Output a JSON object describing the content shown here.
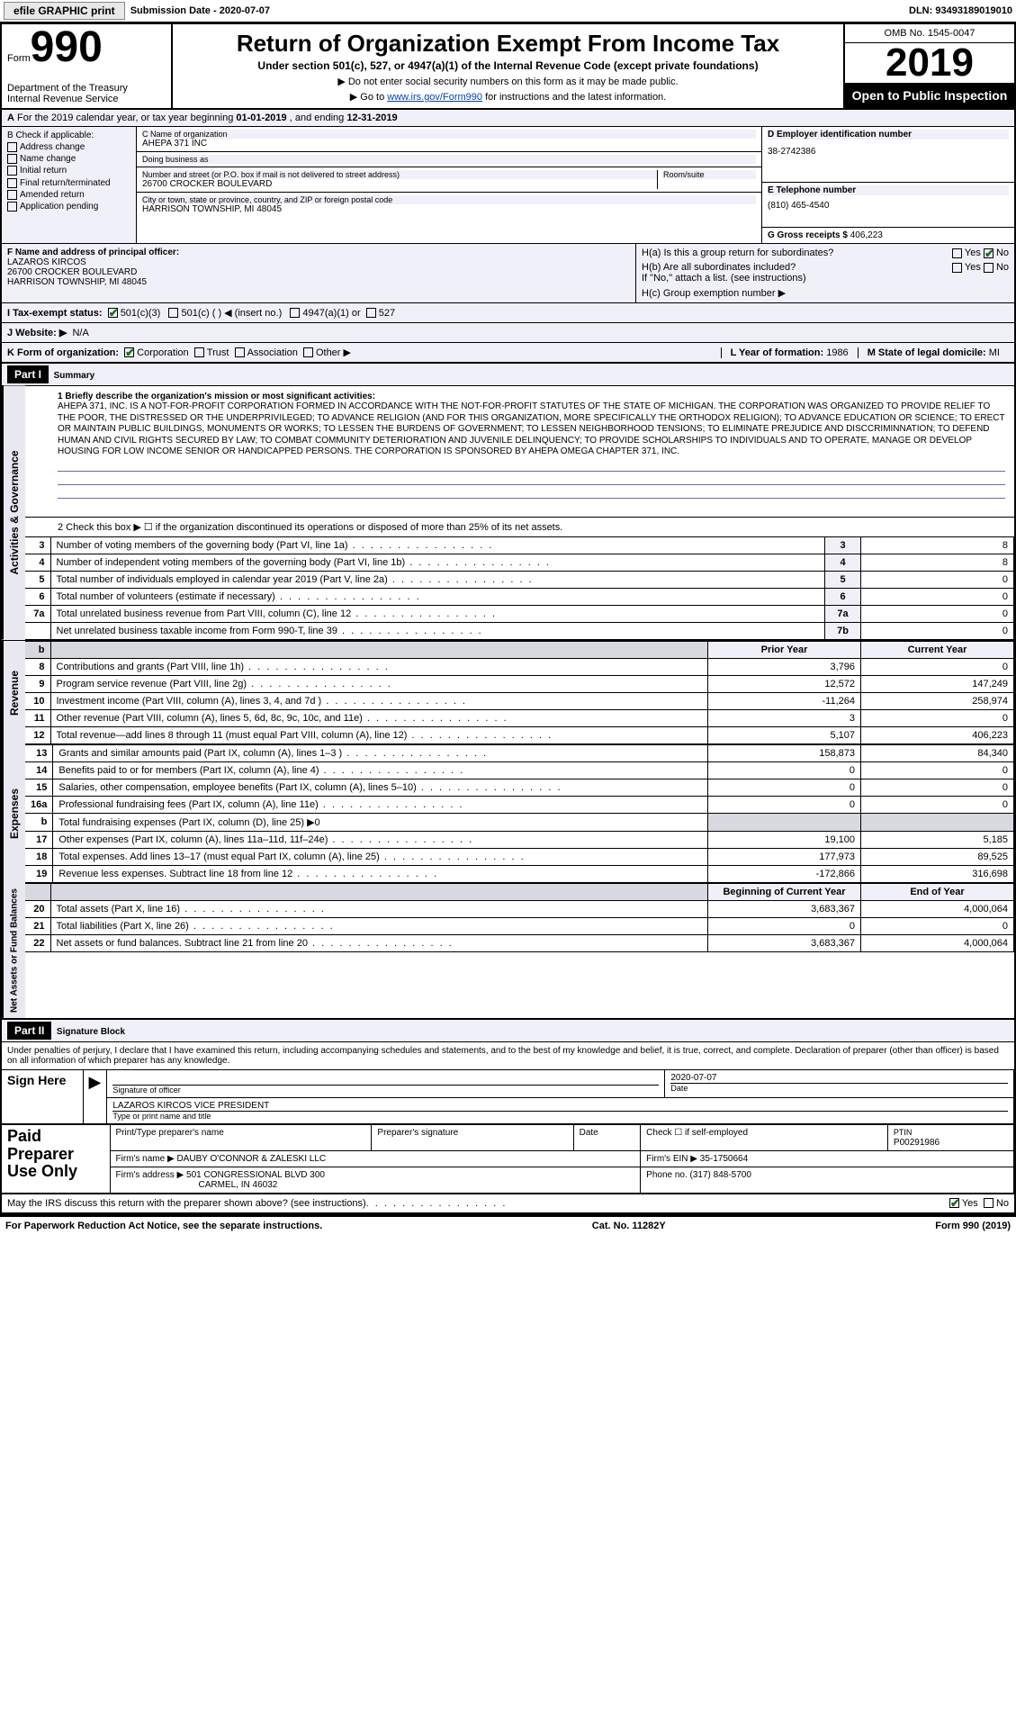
{
  "topbar": {
    "efile": "efile GRAPHIC print",
    "submission_label": "Submission Date - ",
    "submission_date": "2020-07-07",
    "dln_label": "DLN: ",
    "dln": "93493189019010"
  },
  "header": {
    "form_label": "Form",
    "form_number": "990",
    "dept": "Department of the Treasury\nInternal Revenue Service",
    "title": "Return of Organization Exempt From Income Tax",
    "subtitle": "Under section 501(c), 527, or 4947(a)(1) of the Internal Revenue Code (except private foundations)",
    "note1": "▶ Do not enter social security numbers on this form as it may be made public.",
    "note2_pre": "▶ Go to ",
    "note2_link": "www.irs.gov/Form990",
    "note2_post": " for instructions and the latest information.",
    "omb": "OMB No. 1545-0047",
    "year": "2019",
    "inspect": "Open to Public Inspection"
  },
  "rowA": {
    "text_pre": "For the 2019 calendar year, or tax year beginning ",
    "begin": "01-01-2019",
    "mid": " , and ending ",
    "end": "12-31-2019"
  },
  "colB": {
    "label": "B Check if applicable:",
    "items": [
      "Address change",
      "Name change",
      "Initial return",
      "Final return/terminated",
      "Amended return",
      "Application pending"
    ]
  },
  "colC": {
    "name_label": "C Name of organization",
    "name": "AHEPA 371 INC",
    "dba_label": "Doing business as",
    "dba": "",
    "street_label": "Number and street (or P.O. box if mail is not delivered to street address)",
    "street": "26700 CROCKER BOULEVARD",
    "room_label": "Room/suite",
    "city_label": "City or town, state or province, country, and ZIP or foreign postal code",
    "city": "HARRISON TOWNSHIP, MI  48045"
  },
  "colD": {
    "ein_label": "D Employer identification number",
    "ein": "38-2742386",
    "phone_label": "E Telephone number",
    "phone": "(810) 465-4540",
    "gross_label": "G Gross receipts $ ",
    "gross": "406,223"
  },
  "colF": {
    "label": "F  Name and address of principal officer:",
    "name": "LAZAROS KIRCOS",
    "street": "26700 CROCKER BOULEVARD",
    "city": "HARRISON TOWNSHIP, MI  48045"
  },
  "colH": {
    "ha_label": "H(a)  Is this a group return for subordinates?",
    "ha_yes": "Yes",
    "ha_no": "No",
    "hb_label": "H(b)  Are all subordinates included?",
    "hb_yes": "Yes",
    "hb_no": "No",
    "hb_note": "If \"No,\" attach a list. (see instructions)",
    "hc_label": "H(c)  Group exemption number ▶"
  },
  "rowI": {
    "label": "I  Tax-exempt status:",
    "opt1": "501(c)(3)",
    "opt2": "501(c) (   ) ◀ (insert no.)",
    "opt3": "4947(a)(1) or",
    "opt4": "527"
  },
  "rowJ": {
    "label": "J  Website: ▶",
    "value": "N/A"
  },
  "rowK": {
    "label": "K Form of organization:",
    "opts": [
      "Corporation",
      "Trust",
      "Association",
      "Other ▶"
    ],
    "l_label": "L Year of formation: ",
    "l_val": "1986",
    "m_label": "M State of legal domicile: ",
    "m_val": "MI"
  },
  "part1": {
    "hdr": "Part I",
    "title": "Summary",
    "line1_label": "1  Briefly describe the organization's mission or most significant activities:",
    "mission": "AHEPA 371, INC. IS A NOT-FOR-PROFIT CORPORATION FORMED IN ACCORDANCE WITH THE NOT-FOR-PROFIT STATUTES OF THE STATE OF MICHIGAN. THE CORPORATION WAS ORGANIZED TO PROVIDE RELIEF TO THE POOR, THE DISTRESSED OR THE UNDERPRIVILEGED; TO ADVANCE RELIGION (AND FOR THIS ORGANIZATION, MORE SPECIFICALLY THE ORTHODOX RELIGION); TO ADVANCE EDUCATION OR SCIENCE; TO ERECT OR MAINTAIN PUBLIC BUILDINGS, MONUMENTS OR WORKS; TO LESSEN THE BURDENS OF GOVERNMENT; TO LESSEN NEIGHBORHOOD TENSIONS; TO ELIMINATE PREJUDICE AND DISCCRIMINNATION; TO DEFEND HUMAN AND CIVIL RIGHTS SECURED BY LAW; TO COMBAT COMMUNITY DETERIORATION AND JUVENILE DELINQUENCY; TO PROVIDE SCHOLARSHIPS TO INDIVIDUALS AND TO OPERATE, MANAGE OR DEVELOP HOUSING FOR LOW INCOME SENIOR OR HANDICAPPED PERSONS. THE CORPORATION IS SPONSORED BY AHEPA OMEGA CHAPTER 371, INC.",
    "line2": "2  Check this box ▶ ☐ if the organization discontinued its operations or disposed of more than 25% of its net assets.",
    "vert1": "Activities & Governance",
    "vert2": "Revenue",
    "vert3": "Expenses",
    "vert4": "Net Assets or Fund Balances",
    "gov_rows": [
      {
        "n": "3",
        "desc": "Number of voting members of the governing body (Part VI, line 1a)",
        "box": "3",
        "val": "8"
      },
      {
        "n": "4",
        "desc": "Number of independent voting members of the governing body (Part VI, line 1b)",
        "box": "4",
        "val": "8"
      },
      {
        "n": "5",
        "desc": "Total number of individuals employed in calendar year 2019 (Part V, line 2a)",
        "box": "5",
        "val": "0"
      },
      {
        "n": "6",
        "desc": "Total number of volunteers (estimate if necessary)",
        "box": "6",
        "val": "0"
      },
      {
        "n": "7a",
        "desc": "Total unrelated business revenue from Part VIII, column (C), line 12",
        "box": "7a",
        "val": "0"
      },
      {
        "n": "",
        "desc": "Net unrelated business taxable income from Form 990-T, line 39",
        "box": "7b",
        "val": "0"
      }
    ],
    "hdr_b": "b",
    "hdr_prior": "Prior Year",
    "hdr_current": "Current Year",
    "rev_rows": [
      {
        "n": "8",
        "desc": "Contributions and grants (Part VIII, line 1h)",
        "py": "3,796",
        "cy": "0"
      },
      {
        "n": "9",
        "desc": "Program service revenue (Part VIII, line 2g)",
        "py": "12,572",
        "cy": "147,249"
      },
      {
        "n": "10",
        "desc": "Investment income (Part VIII, column (A), lines 3, 4, and 7d )",
        "py": "-11,264",
        "cy": "258,974"
      },
      {
        "n": "11",
        "desc": "Other revenue (Part VIII, column (A), lines 5, 6d, 8c, 9c, 10c, and 11e)",
        "py": "3",
        "cy": "0"
      },
      {
        "n": "12",
        "desc": "Total revenue—add lines 8 through 11 (must equal Part VIII, column (A), line 12)",
        "py": "5,107",
        "cy": "406,223"
      }
    ],
    "exp_rows": [
      {
        "n": "13",
        "desc": "Grants and similar amounts paid (Part IX, column (A), lines 1–3 )",
        "py": "158,873",
        "cy": "84,340"
      },
      {
        "n": "14",
        "desc": "Benefits paid to or for members (Part IX, column (A), line 4)",
        "py": "0",
        "cy": "0"
      },
      {
        "n": "15",
        "desc": "Salaries, other compensation, employee benefits (Part IX, column (A), lines 5–10)",
        "py": "0",
        "cy": "0"
      },
      {
        "n": "16a",
        "desc": "Professional fundraising fees (Part IX, column (A), line 11e)",
        "py": "0",
        "cy": "0"
      },
      {
        "n": "b",
        "desc": "Total fundraising expenses (Part IX, column (D), line 25) ▶0",
        "py": "",
        "cy": "",
        "shaded": true
      },
      {
        "n": "17",
        "desc": "Other expenses (Part IX, column (A), lines 11a–11d, 11f–24e)",
        "py": "19,100",
        "cy": "5,185"
      },
      {
        "n": "18",
        "desc": "Total expenses. Add lines 13–17 (must equal Part IX, column (A), line 25)",
        "py": "177,973",
        "cy": "89,525"
      },
      {
        "n": "19",
        "desc": "Revenue less expenses. Subtract line 18 from line 12",
        "py": "-172,866",
        "cy": "316,698"
      }
    ],
    "hdr_begin": "Beginning of Current Year",
    "hdr_end": "End of Year",
    "na_rows": [
      {
        "n": "20",
        "desc": "Total assets (Part X, line 16)",
        "py": "3,683,367",
        "cy": "4,000,064"
      },
      {
        "n": "21",
        "desc": "Total liabilities (Part X, line 26)",
        "py": "0",
        "cy": "0"
      },
      {
        "n": "22",
        "desc": "Net assets or fund balances. Subtract line 21 from line 20",
        "py": "3,683,367",
        "cy": "4,000,064"
      }
    ]
  },
  "part2": {
    "hdr": "Part II",
    "title": "Signature Block",
    "penalty": "Under penalties of perjury, I declare that I have examined this return, including accompanying schedules and statements, and to the best of my knowledge and belief, it is true, correct, and complete. Declaration of preparer (other than officer) is based on all information of which preparer has any knowledge.",
    "sign_here": "Sign Here",
    "sig_officer_label": "Signature of officer",
    "sig_date": "2020-07-07",
    "date_label": "Date",
    "officer_name": "LAZAROS KIRCOS  VICE PRESIDENT",
    "officer_label": "Type or print name and title",
    "paid": "Paid Preparer Use Only",
    "prep_name_label": "Print/Type preparer's name",
    "prep_sig_label": "Preparer's signature",
    "prep_date_label": "Date",
    "self_emp_label": "Check ☐ if self-employed",
    "ptin_label": "PTIN",
    "ptin": "P00291986",
    "firm_name_label": "Firm's name    ▶ ",
    "firm_name": "DAUBY O'CONNOR & ZALESKI LLC",
    "firm_ein_label": "Firm's EIN ▶ ",
    "firm_ein": "35-1750664",
    "firm_addr_label": "Firm's address ▶ ",
    "firm_addr1": "501 CONGRESSIONAL BLVD 300",
    "firm_addr2": "CARMEL, IN  46032",
    "firm_phone_label": "Phone no. ",
    "firm_phone": "(317) 848-5700",
    "discuss": "May the IRS discuss this return with the preparer shown above? (see instructions)",
    "discuss_yes": "Yes",
    "discuss_no": "No"
  },
  "footer": {
    "left": "For Paperwork Reduction Act Notice, see the separate instructions.",
    "mid": "Cat. No. 11282Y",
    "right": "Form 990 (2019)"
  }
}
